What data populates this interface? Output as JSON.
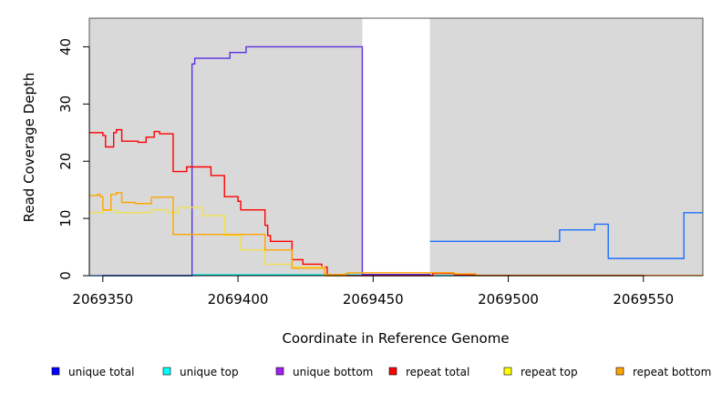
{
  "chart_data": {
    "type": "line",
    "title": "",
    "xlabel": "Coordinate in Reference Genome",
    "ylabel": "Read Coverage Depth",
    "xlim": [
      2069345,
      2069572
    ],
    "ylim": [
      0,
      45
    ],
    "x_ticks": [
      2069350,
      2069400,
      2069450,
      2069500,
      2069550
    ],
    "x_tick_labels": [
      "2069350",
      "2069400",
      "2069450",
      "2069500",
      "2069550"
    ],
    "y_ticks": [
      0,
      10,
      20,
      30,
      40
    ],
    "y_tick_labels": [
      "0",
      "10",
      "20",
      "30",
      "40"
    ],
    "grid": false,
    "background_color": "#d9d9d9",
    "unshaded_regions": [
      [
        2069446,
        2069471
      ]
    ],
    "legend_position": "bottom",
    "legend": [
      {
        "label": "unique total",
        "color": "#0000ff"
      },
      {
        "label": "unique top",
        "color": "#00ffff"
      },
      {
        "label": "unique bottom",
        "color": "#a020f0"
      },
      {
        "label": "repeat total",
        "color": "#ff0000"
      },
      {
        "label": "repeat top",
        "color": "#ffff00"
      },
      {
        "label": "repeat bottom",
        "color": "#ffa500"
      }
    ],
    "series": [
      {
        "name": "unique total",
        "color": "#1e6fff",
        "step": [
          [
            2069471,
            6
          ],
          [
            2069519,
            8
          ],
          [
            2069532,
            9
          ],
          [
            2069537,
            3
          ],
          [
            2069565,
            11
          ],
          [
            2069572,
            11
          ]
        ]
      },
      {
        "name": "unique top",
        "color": "#00e5e5",
        "step": [
          [
            2069345,
            0
          ],
          [
            2069383,
            0.15
          ],
          [
            2069446,
            0
          ],
          [
            2069471,
            0
          ],
          [
            2069572,
            0
          ]
        ]
      },
      {
        "name": "unique bottom",
        "color": "#5a2fe0",
        "step": [
          [
            2069345,
            0
          ],
          [
            2069383,
            37
          ],
          [
            2069384,
            38
          ],
          [
            2069397,
            39
          ],
          [
            2069403,
            40
          ],
          [
            2069446,
            0.2
          ],
          [
            2069471,
            0
          ]
        ]
      },
      {
        "name": "repeat total",
        "color": "#ff0000",
        "step": [
          [
            2069345,
            25
          ],
          [
            2069350,
            24.5
          ],
          [
            2069351,
            22.5
          ],
          [
            2069354,
            25
          ],
          [
            2069355,
            25.5
          ],
          [
            2069357,
            23.5
          ],
          [
            2069363,
            23.3
          ],
          [
            2069366,
            24.2
          ],
          [
            2069369,
            25.2
          ],
          [
            2069371,
            24.8
          ],
          [
            2069376,
            18.2
          ],
          [
            2069381,
            19
          ],
          [
            2069390,
            17.5
          ],
          [
            2069395,
            13.8
          ],
          [
            2069400,
            13
          ],
          [
            2069401,
            11.5
          ],
          [
            2069410,
            8.8
          ],
          [
            2069411,
            7
          ],
          [
            2069412,
            6
          ],
          [
            2069420,
            2.8
          ],
          [
            2069424,
            2
          ],
          [
            2069431,
            1.5
          ],
          [
            2069433,
            0
          ],
          [
            2069440,
            0
          ],
          [
            2069472,
            0.4
          ],
          [
            2069480,
            0.2
          ],
          [
            2069488,
            0.05
          ],
          [
            2069572,
            0
          ]
        ]
      },
      {
        "name": "repeat top",
        "color": "#f0e050",
        "step": [
          [
            2069345,
            11
          ],
          [
            2069350,
            11.4
          ],
          [
            2069355,
            11
          ],
          [
            2069368,
            11.5
          ],
          [
            2069374,
            11
          ],
          [
            2069378,
            11.9
          ],
          [
            2069387,
            10.5
          ],
          [
            2069395,
            7
          ],
          [
            2069401,
            4.5
          ],
          [
            2069409,
            4.3
          ],
          [
            2069410,
            2
          ],
          [
            2069420,
            1.5
          ],
          [
            2069432,
            0
          ],
          [
            2069440,
            0
          ]
        ]
      },
      {
        "name": "repeat bottom",
        "color": "#ffa500",
        "step": [
          [
            2069345,
            14
          ],
          [
            2069348,
            14.2
          ],
          [
            2069349,
            13.8
          ],
          [
            2069350,
            11.5
          ],
          [
            2069353,
            14.2
          ],
          [
            2069355,
            14.5
          ],
          [
            2069357,
            12.8
          ],
          [
            2069362,
            12.6
          ],
          [
            2069368,
            13.7
          ],
          [
            2069376,
            7.2
          ],
          [
            2069410,
            4.5
          ],
          [
            2069420,
            1.3
          ],
          [
            2069432,
            0.2
          ],
          [
            2069440,
            0.4
          ],
          [
            2069441,
            0.5
          ],
          [
            2069480,
            0.3
          ],
          [
            2069488,
            0
          ],
          [
            2069572,
            0
          ]
        ]
      }
    ]
  }
}
